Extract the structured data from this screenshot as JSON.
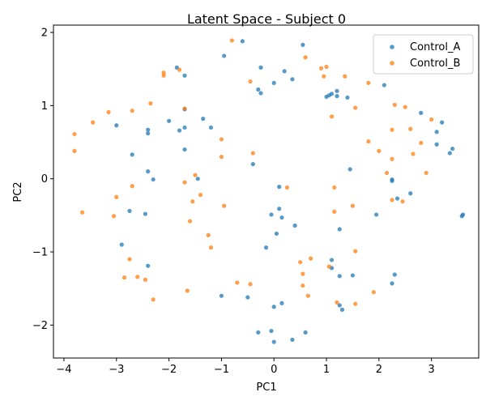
{
  "chart_data": {
    "type": "scatter",
    "title": "Latent Space - Subject 0",
    "xlabel": "PC1",
    "ylabel": "PC2",
    "xlim": [
      -4.2,
      3.9
    ],
    "ylim": [
      -2.45,
      2.1
    ],
    "x_ticks": [
      -4,
      -3,
      -2,
      -1,
      0,
      1,
      2,
      3
    ],
    "y_ticks": [
      -2,
      -1,
      0,
      1,
      2
    ],
    "x_tick_labels": [
      "−4",
      "−3",
      "−2",
      "−1",
      "0",
      "1",
      "2",
      "3"
    ],
    "y_tick_labels": [
      "−2",
      "−1",
      "0",
      "1",
      "2"
    ],
    "grid": false,
    "legend_position": "top-right",
    "series": [
      {
        "name": "Control_A",
        "color": "#1f77b4",
        "points": [
          [
            -0.6,
            1.88
          ],
          [
            -0.95,
            1.68
          ],
          [
            0.55,
            1.83
          ],
          [
            -1.85,
            1.52
          ],
          [
            -1.7,
            1.41
          ],
          [
            -0.25,
            1.52
          ],
          [
            0.2,
            1.47
          ],
          [
            0.35,
            1.36
          ],
          [
            0.0,
            1.31
          ],
          [
            -0.3,
            1.22
          ],
          [
            -0.25,
            1.17
          ],
          [
            1.2,
            1.2
          ],
          [
            1.1,
            1.16
          ],
          [
            1.05,
            1.14
          ],
          [
            1.0,
            1.12
          ],
          [
            1.2,
            1.13
          ],
          [
            1.4,
            1.11
          ],
          [
            2.1,
            1.28
          ],
          [
            -3.0,
            0.73
          ],
          [
            -1.7,
            0.95
          ],
          [
            -2.0,
            0.79
          ],
          [
            -1.35,
            0.82
          ],
          [
            -1.2,
            0.7
          ],
          [
            -1.7,
            0.7
          ],
          [
            -1.8,
            0.66
          ],
          [
            -2.4,
            0.67
          ],
          [
            -2.4,
            0.62
          ],
          [
            -1.7,
            0.4
          ],
          [
            -2.7,
            0.33
          ],
          [
            2.8,
            0.9
          ],
          [
            3.2,
            0.77
          ],
          [
            3.1,
            0.64
          ],
          [
            3.1,
            0.47
          ],
          [
            3.4,
            0.41
          ],
          [
            3.35,
            0.35
          ],
          [
            -2.4,
            0.1
          ],
          [
            -2.3,
            -0.01
          ],
          [
            -1.45,
            0.0
          ],
          [
            -0.4,
            0.2
          ],
          [
            1.45,
            0.13
          ],
          [
            2.25,
            -0.01
          ],
          [
            2.25,
            -0.03
          ],
          [
            2.6,
            -0.2
          ],
          [
            2.35,
            -0.27
          ],
          [
            0.1,
            -0.11
          ],
          [
            -2.75,
            -0.44
          ],
          [
            -2.45,
            -0.48
          ],
          [
            -0.05,
            -0.49
          ],
          [
            0.1,
            -0.41
          ],
          [
            0.15,
            -0.53
          ],
          [
            1.95,
            -0.49
          ],
          [
            3.6,
            -0.49
          ],
          [
            3.58,
            -0.51
          ],
          [
            0.4,
            -0.64
          ],
          [
            1.25,
            -0.69
          ],
          [
            0.05,
            -0.75
          ],
          [
            -2.9,
            -0.9
          ],
          [
            -0.15,
            -0.94
          ],
          [
            1.1,
            -1.11
          ],
          [
            -2.4,
            -1.19
          ],
          [
            1.1,
            -1.22
          ],
          [
            1.25,
            -1.33
          ],
          [
            1.5,
            -1.32
          ],
          [
            2.3,
            -1.31
          ],
          [
            2.25,
            -1.43
          ],
          [
            -1.0,
            -1.6
          ],
          [
            -0.5,
            -1.62
          ],
          [
            0.15,
            -1.7
          ],
          [
            0.0,
            -1.75
          ],
          [
            1.25,
            -1.73
          ],
          [
            1.3,
            -1.79
          ],
          [
            -0.05,
            -2.08
          ],
          [
            -0.3,
            -2.1
          ],
          [
            0.6,
            -2.1
          ],
          [
            0.35,
            -2.2
          ],
          [
            0.0,
            -2.23
          ]
        ]
      },
      {
        "name": "Control_B",
        "color": "#ff7f0e",
        "points": [
          [
            -0.8,
            1.89
          ],
          [
            -0.45,
            1.33
          ],
          [
            0.6,
            1.66
          ],
          [
            0.9,
            1.51
          ],
          [
            1.0,
            1.53
          ],
          [
            0.95,
            1.4
          ],
          [
            1.35,
            1.4
          ],
          [
            1.8,
            1.31
          ],
          [
            -1.8,
            1.49
          ],
          [
            -2.1,
            1.45
          ],
          [
            -2.1,
            1.41
          ],
          [
            -2.35,
            1.03
          ],
          [
            -1.7,
            0.96
          ],
          [
            -2.7,
            0.93
          ],
          [
            -3.15,
            0.91
          ],
          [
            -3.45,
            0.77
          ],
          [
            -3.8,
            0.61
          ],
          [
            -3.8,
            0.38
          ],
          [
            1.1,
            0.85
          ],
          [
            1.55,
            0.97
          ],
          [
            2.3,
            1.01
          ],
          [
            2.5,
            0.98
          ],
          [
            2.6,
            0.68
          ],
          [
            2.25,
            0.67
          ],
          [
            3.0,
            0.81
          ],
          [
            1.8,
            0.51
          ],
          [
            2.0,
            0.38
          ],
          [
            2.65,
            0.34
          ],
          [
            2.8,
            0.49
          ],
          [
            2.9,
            0.08
          ],
          [
            2.15,
            0.08
          ],
          [
            2.25,
            0.27
          ],
          [
            -1.0,
            0.54
          ],
          [
            -0.4,
            0.35
          ],
          [
            -1.0,
            0.3
          ],
          [
            -1.5,
            0.05
          ],
          [
            -1.7,
            -0.05
          ],
          [
            -2.7,
            -0.1
          ],
          [
            -3.0,
            -0.25
          ],
          [
            -1.4,
            -0.22
          ],
          [
            -1.55,
            -0.31
          ],
          [
            0.25,
            -0.12
          ],
          [
            1.15,
            -0.12
          ],
          [
            -0.95,
            -0.37
          ],
          [
            -3.65,
            -0.46
          ],
          [
            -3.05,
            -0.51
          ],
          [
            1.15,
            -0.45
          ],
          [
            1.5,
            -0.37
          ],
          [
            2.25,
            -0.29
          ],
          [
            2.45,
            -0.31
          ],
          [
            -1.6,
            -0.58
          ],
          [
            -1.25,
            -0.77
          ],
          [
            -1.2,
            -0.94
          ],
          [
            1.55,
            -0.99
          ],
          [
            -2.75,
            -1.1
          ],
          [
            0.7,
            -1.09
          ],
          [
            0.5,
            -1.14
          ],
          [
            1.05,
            -1.2
          ],
          [
            0.55,
            -1.3
          ],
          [
            -2.85,
            -1.35
          ],
          [
            -2.6,
            -1.34
          ],
          [
            -2.45,
            -1.38
          ],
          [
            -0.7,
            -1.42
          ],
          [
            -0.45,
            -1.44
          ],
          [
            0.55,
            -1.46
          ],
          [
            -1.65,
            -1.53
          ],
          [
            1.9,
            -1.55
          ],
          [
            0.65,
            -1.6
          ],
          [
            -2.3,
            -1.65
          ],
          [
            1.2,
            -1.69
          ],
          [
            1.55,
            -1.71
          ]
        ]
      }
    ]
  }
}
